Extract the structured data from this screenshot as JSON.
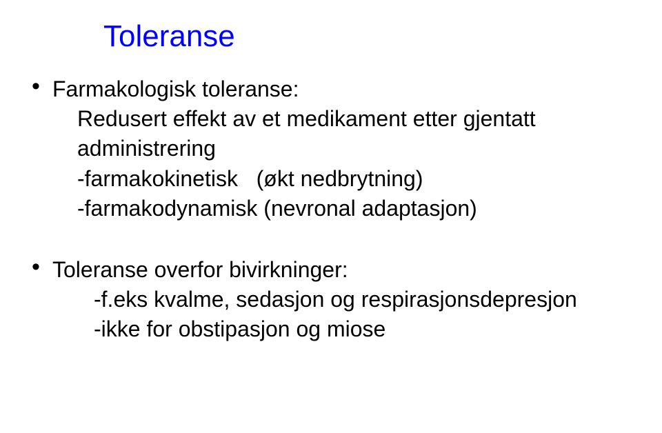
{
  "colors": {
    "title": "#0000ff",
    "body": "#000000",
    "background": "#ffffff"
  },
  "typography": {
    "title_fontsize": 44,
    "body_fontsize": 32,
    "title_weight": "400",
    "body_weight": "400",
    "line_height": 1.35
  },
  "title": "Toleranse",
  "bullets": [
    {
      "lead": "Farmakologisk toleranse:",
      "lines": [
        "Redusert effekt av et medikament etter gjentatt administrering",
        "-farmakokinetisk   (økt nedbrytning)",
        "-farmakodynamisk (nevronal adaptasjon)"
      ]
    },
    {
      "lead": "Toleranse overfor bivirkninger:",
      "lines": [
        "-f.eks kvalme, sedasjon og respirasjonsdepresjon",
        "-ikke for obstipasjon og miose"
      ]
    }
  ]
}
